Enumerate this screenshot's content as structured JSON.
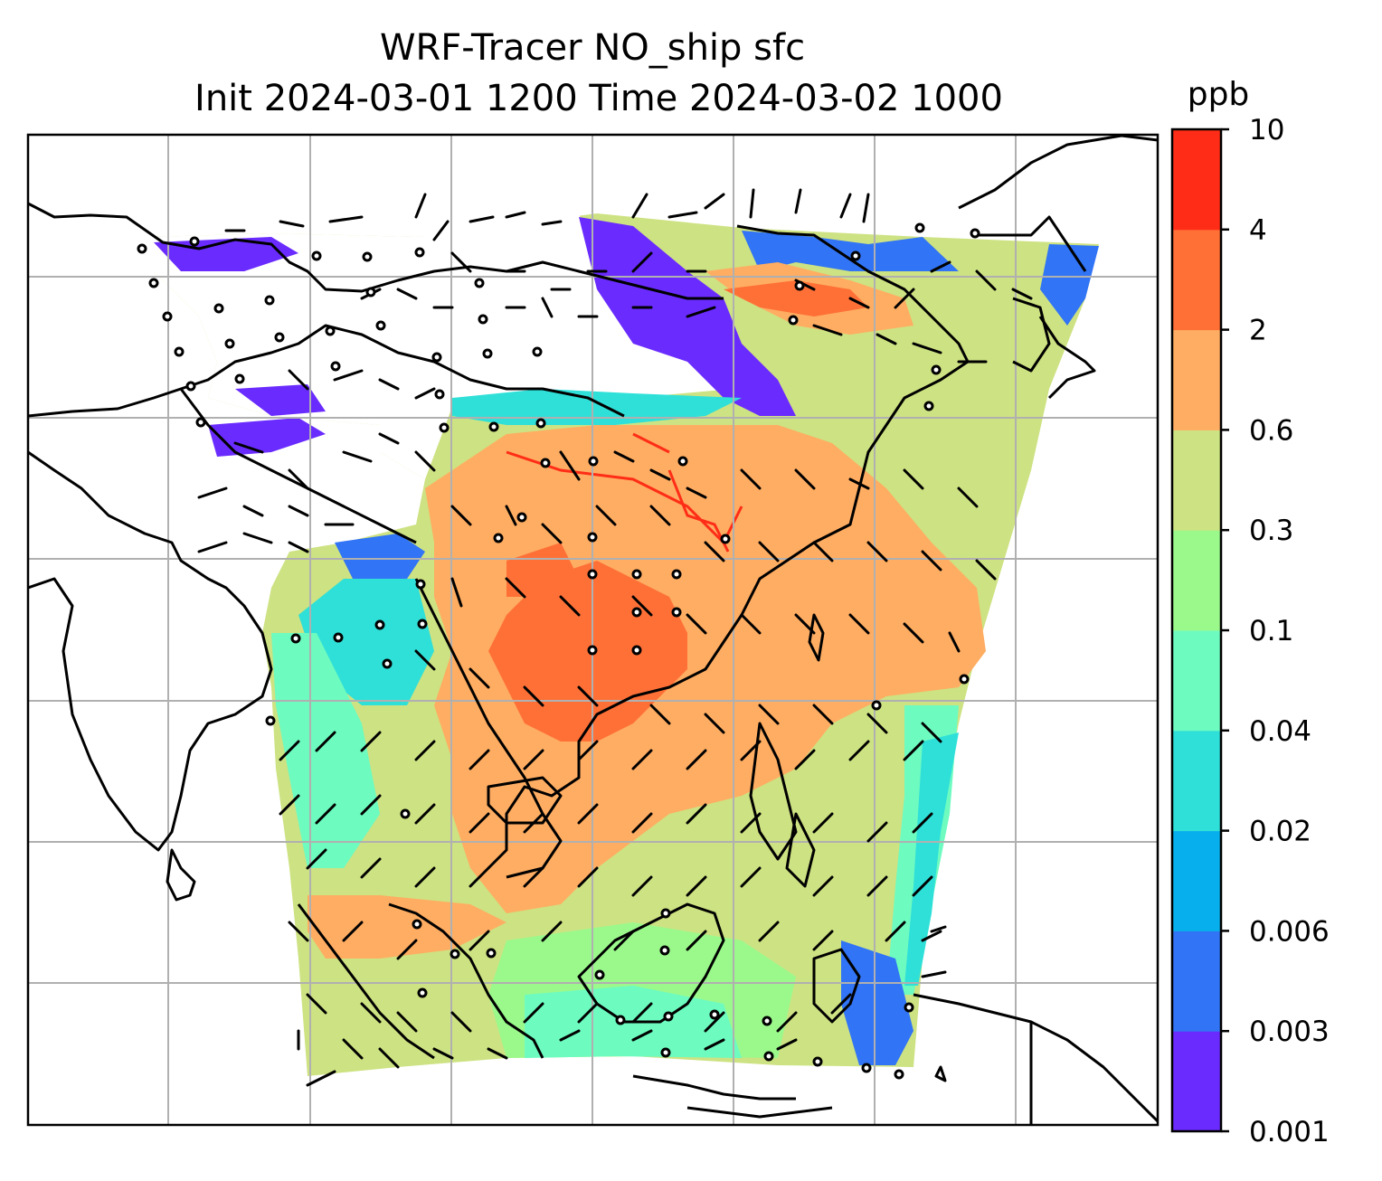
{
  "title": {
    "line1": "WRF-Tracer NO_ship sfc",
    "line2": "Init 2024-03-01 1200 Time 2024-03-02 1000"
  },
  "colorbar": {
    "unit": "ppb",
    "levels": [
      "0.001",
      "0.003",
      "0.006",
      "0.02",
      "0.04",
      "0.1",
      "0.3",
      "0.6",
      "2",
      "4",
      "10"
    ],
    "colors": [
      "#6a2bff",
      "#3174f5",
      "#07b0ec",
      "#2fe0d8",
      "#6dfbc0",
      "#9bf98c",
      "#cde282",
      "#ffad62",
      "#ff7037",
      "#ff2d17"
    ]
  },
  "map": {
    "land_color": "#ffffff",
    "coastline_color": "#000000",
    "gridline_color": "#b0b0b0",
    "tracer_field_colors": {
      "background": "#cde282",
      "high": "#ffad62",
      "higher": "#ff7037",
      "peak": "#ff2d17",
      "low": "#9bf98c",
      "lower": "#6dfbc0",
      "edge": "#2fe0d8",
      "fringe_blue": "#3174f5",
      "fringe_violet": "#6a2bff"
    },
    "wind_barbs": "black barbs and calm circles"
  }
}
